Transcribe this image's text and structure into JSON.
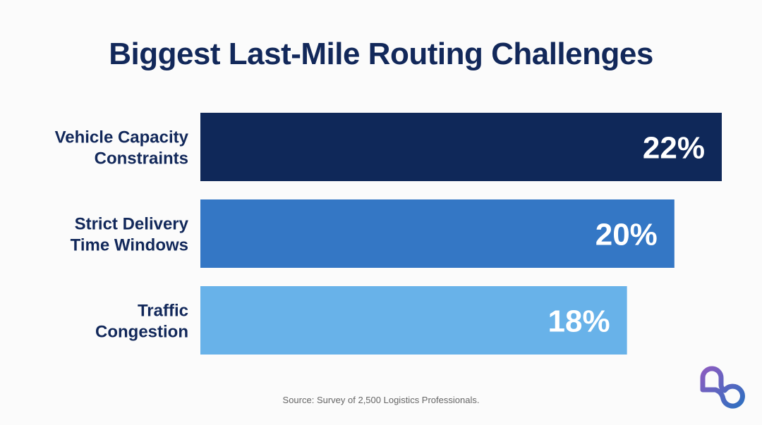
{
  "chart_data": {
    "type": "bar",
    "orientation": "horizontal",
    "title": "Biggest Last-Mile Routing Challenges",
    "categories": [
      [
        "Vehicle Capacity",
        "Constraints"
      ],
      [
        "Strict Delivery",
        "Time Windows"
      ],
      [
        "Traffic",
        "Congestion"
      ]
    ],
    "values": [
      22,
      20,
      18
    ],
    "data_labels": [
      "22%",
      "20%",
      "18%"
    ],
    "colors": [
      "#0f2859",
      "#3477c5",
      "#68b2e9"
    ],
    "xlim": [
      0,
      22
    ],
    "grid": false,
    "axes_visible": false
  },
  "source": "Source: Survey of 2,500 Logistics Professionals.",
  "logo": {
    "icon": "infinity-loop-logo",
    "colors": [
      "#8b5cc0",
      "#2f6fc0"
    ]
  }
}
